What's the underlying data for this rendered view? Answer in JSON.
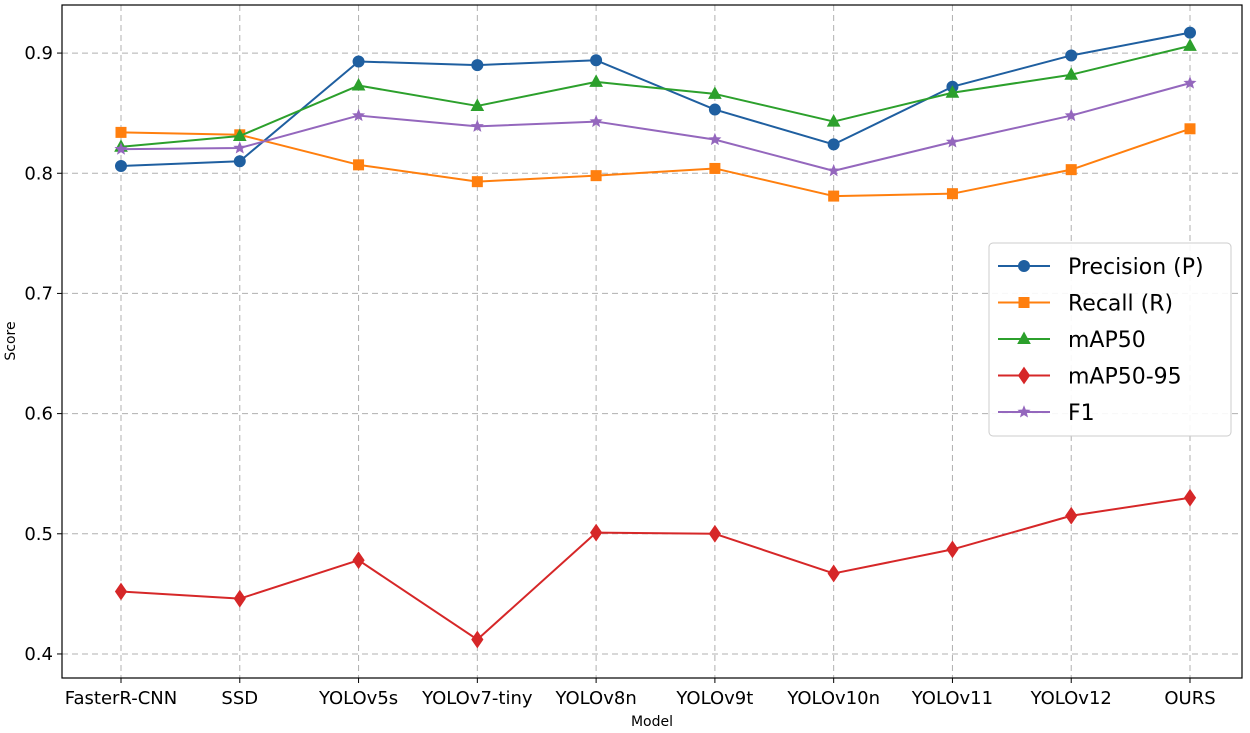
{
  "chart_data": {
    "type": "line",
    "title": "",
    "xlabel": "Model",
    "ylabel": "Score",
    "categories": [
      "FasterR-CNN",
      "SSD",
      "YOLOv5s",
      "YOLOv7-tiny",
      "YOLOv8n",
      "YOLOv9t",
      "YOLOv10n",
      "YOLOv11",
      "YOLOv12",
      "OURS"
    ],
    "ylim": [
      0.38,
      0.94
    ],
    "yticks": [
      0.4,
      0.5,
      0.6,
      0.7,
      0.8,
      0.9
    ],
    "ytick_labels": [
      "0.4",
      "0.5",
      "0.6",
      "0.7",
      "0.8",
      "0.9"
    ],
    "grid": true,
    "legend_position": "right",
    "series": [
      {
        "name": "Precision (P)",
        "color": "#1f5fa0",
        "marker": "circle",
        "values": [
          0.806,
          0.81,
          0.893,
          0.89,
          0.894,
          0.853,
          0.824,
          0.872,
          0.898,
          0.917
        ]
      },
      {
        "name": "Recall (R)",
        "color": "#ff7f0e",
        "marker": "square",
        "values": [
          0.834,
          0.832,
          0.807,
          0.793,
          0.798,
          0.804,
          0.781,
          0.783,
          0.803,
          0.837
        ]
      },
      {
        "name": "mAP50",
        "color": "#2ca02c",
        "marker": "triangle",
        "values": [
          0.822,
          0.831,
          0.873,
          0.856,
          0.876,
          0.866,
          0.843,
          0.867,
          0.882,
          0.906
        ]
      },
      {
        "name": "mAP50-95",
        "color": "#d62728",
        "marker": "diamond",
        "values": [
          0.452,
          0.446,
          0.478,
          0.412,
          0.501,
          0.5,
          0.467,
          0.487,
          0.515,
          0.53
        ]
      },
      {
        "name": "F1",
        "color": "#9467bd",
        "marker": "star",
        "values": [
          0.82,
          0.821,
          0.848,
          0.839,
          0.843,
          0.828,
          0.802,
          0.826,
          0.848,
          0.875
        ]
      }
    ]
  }
}
